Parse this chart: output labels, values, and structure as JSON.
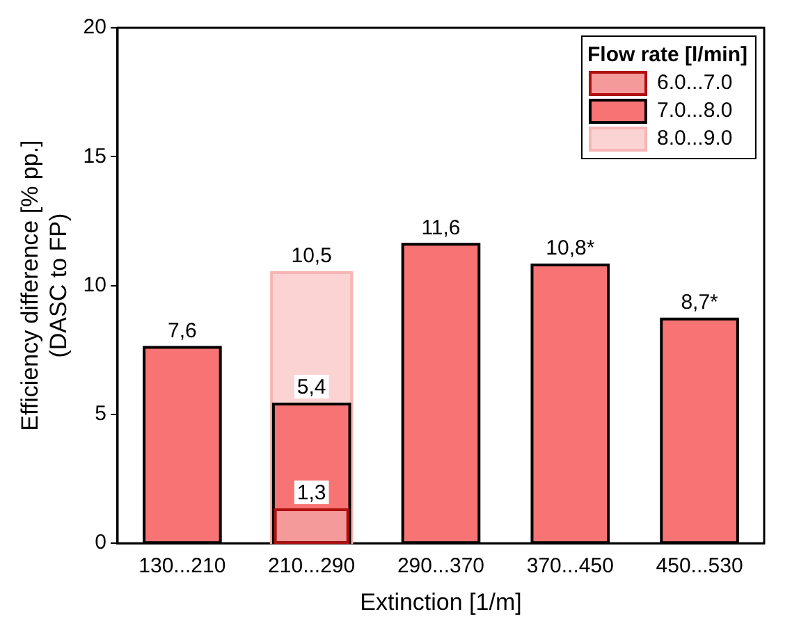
{
  "chart_data": {
    "type": "bar",
    "xlabel": "Extinction [1/m]",
    "ylabel": "Efficiency difference [% pp.]\n(DASC to FP)",
    "legend_title": "Flow rate [l/min]",
    "categories": [
      "130...210",
      "210...290",
      "290...370",
      "370...450",
      "450...530"
    ],
    "series": [
      {
        "name": "6.0...7.0",
        "color": "#f59a9a",
        "values": [
          null,
          1.3,
          null,
          null,
          null
        ],
        "value_labels": [
          null,
          "1,3",
          null,
          null,
          null
        ]
      },
      {
        "name": "7.0...8.0",
        "color": "#f87373",
        "values": [
          7.6,
          5.4,
          11.6,
          10.8,
          8.7
        ],
        "value_labels": [
          "7,6",
          "5,4",
          "11,6",
          "10,8*",
          "8,7*"
        ]
      },
      {
        "name": "8.0...9.0",
        "color": "#fbd3d3",
        "values": [
          null,
          10.5,
          null,
          null,
          null
        ],
        "value_labels": [
          null,
          "10,5",
          null,
          null,
          null
        ]
      }
    ],
    "ylim": [
      0,
      20
    ],
    "yticks": [
      0,
      5,
      10,
      15,
      20
    ],
    "grid": false,
    "legend": "top right"
  }
}
